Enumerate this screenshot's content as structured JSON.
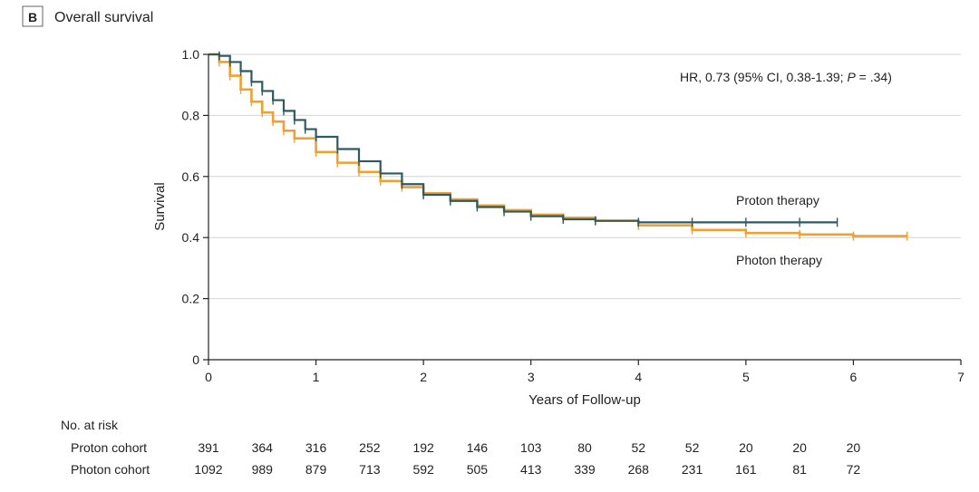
{
  "panel": {
    "letter": "B",
    "title": "Overall survival"
  },
  "chart_data": {
    "type": "line",
    "title": "Overall survival",
    "xlabel": "Years of Follow-up",
    "ylabel": "Survival",
    "xlim": [
      0,
      7
    ],
    "ylim": [
      0,
      1.0
    ],
    "xticks": [
      "0",
      "1",
      "2",
      "3",
      "4",
      "5",
      "6",
      "7"
    ],
    "yticks": [
      "0",
      "0.2",
      "0.4",
      "0.6",
      "0.8",
      "1.0"
    ],
    "grid": "horizontal",
    "annotation_parts": [
      "HR, 0.73 (95% CI, 0.38-1.39; ",
      "P",
      " = .34)"
    ],
    "series": [
      {
        "name": "Proton therapy",
        "color": "#2e5a62",
        "x": [
          0,
          0.1,
          0.2,
          0.3,
          0.4,
          0.5,
          0.6,
          0.7,
          0.8,
          0.9,
          1.0,
          1.2,
          1.4,
          1.6,
          1.8,
          2.0,
          2.25,
          2.5,
          2.75,
          3.0,
          3.3,
          3.6,
          4.0,
          4.5,
          5.0,
          5.5,
          5.85
        ],
        "y": [
          1.0,
          0.995,
          0.975,
          0.945,
          0.91,
          0.88,
          0.85,
          0.815,
          0.785,
          0.755,
          0.73,
          0.69,
          0.65,
          0.61,
          0.575,
          0.54,
          0.52,
          0.5,
          0.485,
          0.47,
          0.46,
          0.455,
          0.45,
          0.45,
          0.45,
          0.45,
          0.45
        ]
      },
      {
        "name": "Photon therapy",
        "color": "#f0a030",
        "x": [
          0,
          0.1,
          0.2,
          0.3,
          0.4,
          0.5,
          0.6,
          0.7,
          0.8,
          1.0,
          1.2,
          1.4,
          1.6,
          1.8,
          2.0,
          2.25,
          2.5,
          2.75,
          3.0,
          3.3,
          3.6,
          4.0,
          4.5,
          5.0,
          5.5,
          6.0,
          6.5
        ],
        "y": [
          1.0,
          0.975,
          0.93,
          0.885,
          0.845,
          0.81,
          0.78,
          0.75,
          0.725,
          0.68,
          0.645,
          0.615,
          0.585,
          0.565,
          0.545,
          0.525,
          0.505,
          0.49,
          0.475,
          0.465,
          0.455,
          0.44,
          0.425,
          0.415,
          0.41,
          0.405,
          0.405
        ]
      }
    ],
    "risk_table": {
      "header": "No. at risk",
      "rows": [
        {
          "label": "Proton cohort",
          "values": [
            "391",
            "364",
            "316",
            "252",
            "192",
            "146",
            "103",
            "80",
            "52",
            "52",
            "20",
            "20",
            "20"
          ]
        },
        {
          "label": "Photon cohort",
          "values": [
            "1092",
            "989",
            "879",
            "713",
            "592",
            "505",
            "413",
            "339",
            "268",
            "231",
            "161",
            "81",
            "72"
          ]
        }
      ]
    }
  }
}
